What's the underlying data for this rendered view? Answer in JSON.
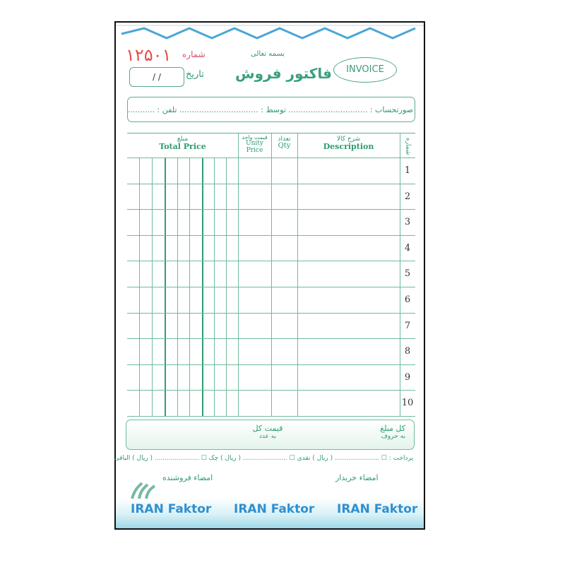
{
  "header": {
    "serial_number": "۱۲۵۰۱",
    "serial_label": "شماره",
    "subtitle": "بسمه تعالی",
    "title": "فاکتور فروش",
    "badge": "INVOICE",
    "date_label": "تاریخ",
    "date_value": "/   /"
  },
  "info": {
    "text": "صورتحساب : ................................ توسط : ................................ تلفن : ................................"
  },
  "table": {
    "headers": {
      "number_fa": "شماره",
      "description_fa": "شرح کالا",
      "description_en": "Description",
      "qty_fa": "تعداد",
      "qty_en": "Qty",
      "unit_fa": "قیمت واحد",
      "unit_en": "Unity Price",
      "total_fa": "مبلغ",
      "total_en": "Total Price"
    },
    "row_numbers": [
      "1",
      "2",
      "3",
      "4",
      "5",
      "6",
      "7",
      "8",
      "9",
      "10"
    ]
  },
  "totals": {
    "in_words": "کل مبلغ",
    "in_words_sub": "به حروف",
    "in_numbers": "قیمت کل",
    "in_numbers_sub": "به عدد"
  },
  "payment": {
    "text": "پرداخت : ☐ ...................... ( ریال ) نقدی ☐ ...................... ( ریال ) چک ☐ ...................... ( ریال ) الباقی"
  },
  "signatures": {
    "buyer": "امضاء خریدار",
    "seller": "امضاء فروشنده"
  },
  "footer": {
    "brand": [
      "IRAN Faktor",
      "IRAN Faktor",
      "IRAN Faktor"
    ]
  },
  "colors": {
    "ink": "#2e9a6e",
    "serial": "#e0504a",
    "brand": "#2f8fd0"
  }
}
